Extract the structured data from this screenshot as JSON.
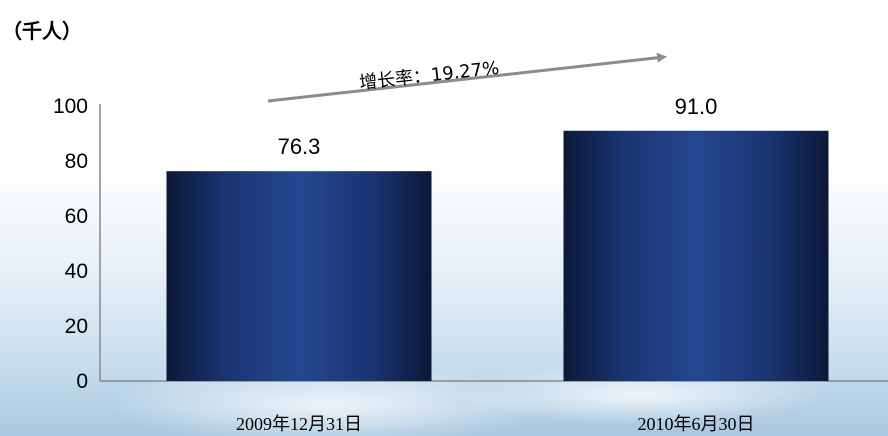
{
  "chart_data": {
    "type": "bar",
    "unit": "（千人）",
    "categories": [
      "2009年12月31日",
      "2010年6月30日"
    ],
    "values": [
      76.3,
      91.0
    ],
    "value_labels": [
      "76.3",
      "91.0"
    ],
    "ylim": [
      0,
      100
    ],
    "yticks": [
      0,
      20,
      40,
      60,
      80,
      100
    ],
    "grid": false,
    "annotation": {
      "text": "增长率：19.27%",
      "type": "arrow"
    },
    "colors": {
      "bar_dark": "#0c1a40",
      "bar_light": "#24468e",
      "axis": "#888888",
      "arrow": "#8c8c8c",
      "sky": "#cfe0ee"
    }
  }
}
